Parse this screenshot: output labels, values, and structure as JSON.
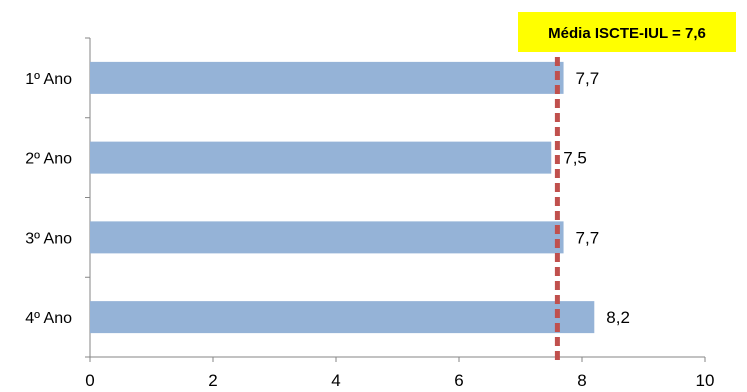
{
  "chart_data": {
    "type": "bar",
    "orientation": "horizontal",
    "categories": [
      "1º Ano",
      "2º Ano",
      "3º Ano",
      "4º Ano"
    ],
    "values": [
      7.7,
      7.5,
      7.7,
      8.2
    ],
    "value_labels": [
      "7,7",
      "7,5",
      "7,7",
      "8,2"
    ],
    "xlim": [
      0,
      10
    ],
    "xticks": [
      0,
      2,
      4,
      6,
      8,
      10
    ],
    "grid": false,
    "legend": "none",
    "bar_color": "#95B3D7",
    "reference_line": {
      "value": 7.6,
      "label": "Média ISCTE-IUL = 7,6",
      "line_color": "#C0504D",
      "label_background": "#FFFF00"
    }
  }
}
